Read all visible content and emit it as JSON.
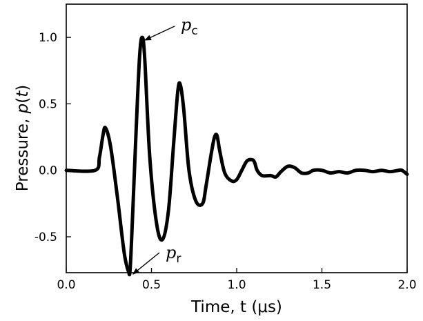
{
  "chart_data": {
    "type": "line",
    "title": "",
    "xlabel": "Time, t (μs)",
    "ylabel_parts": [
      "Pressure, ",
      "p",
      "(",
      "t",
      ")"
    ],
    "xlim": [
      0.0,
      2.0
    ],
    "ylim": [
      -0.77,
      1.25
    ],
    "xticks": [
      "0.0",
      "0.5",
      "1.0",
      "1.5",
      "2.0"
    ],
    "yticks": [
      "-0.5",
      "0.0",
      "0.5",
      "1.0"
    ],
    "xtick_values": [
      0.0,
      0.5,
      1.0,
      1.5,
      2.0
    ],
    "ytick_values": [
      -0.5,
      0.0,
      0.5,
      1.0
    ],
    "grid": false,
    "series": [
      {
        "name": "p(t)",
        "color": "#000000",
        "x": [
          0.0,
          0.17,
          0.195,
          0.215,
          0.23,
          0.26,
          0.3,
          0.34,
          0.365,
          0.375,
          0.39,
          0.41,
          0.43,
          0.445,
          0.46,
          0.49,
          0.53,
          0.565,
          0.6,
          0.63,
          0.655,
          0.67,
          0.69,
          0.72,
          0.76,
          0.8,
          0.82,
          0.85,
          0.87,
          0.885,
          0.9,
          0.93,
          0.97,
          1.0,
          1.03,
          1.06,
          1.09,
          1.105,
          1.12,
          1.15,
          1.2,
          1.23,
          1.26,
          1.3,
          1.34,
          1.38,
          1.42,
          1.45,
          1.5,
          1.55,
          1.6,
          1.65,
          1.7,
          1.75,
          1.8,
          1.85,
          1.9,
          1.95,
          1.97,
          2.0
        ],
        "y": [
          0.0,
          0.0,
          0.1,
          0.26,
          0.32,
          0.18,
          -0.2,
          -0.62,
          -0.76,
          -0.74,
          -0.32,
          0.3,
          0.85,
          1.0,
          0.85,
          0.1,
          -0.4,
          -0.52,
          -0.3,
          0.2,
          0.6,
          0.64,
          0.45,
          0.0,
          -0.23,
          -0.25,
          -0.12,
          0.12,
          0.25,
          0.26,
          0.15,
          -0.02,
          -0.08,
          -0.07,
          0.0,
          0.07,
          0.08,
          0.06,
          0.0,
          -0.04,
          -0.04,
          -0.05,
          -0.01,
          0.03,
          0.02,
          -0.02,
          -0.02,
          0.0,
          0.0,
          -0.02,
          -0.01,
          -0.02,
          0.0,
          0.0,
          -0.01,
          0.0,
          -0.01,
          0.0,
          0.0,
          -0.03
        ]
      }
    ],
    "annotations": [
      {
        "name": "compression-peak",
        "symbol": "p",
        "subscript": "c",
        "x": 0.445,
        "y": 1.0
      },
      {
        "name": "rarefaction-peak",
        "symbol": "p",
        "subscript": "r",
        "x": 0.375,
        "y": -0.755
      }
    ]
  }
}
